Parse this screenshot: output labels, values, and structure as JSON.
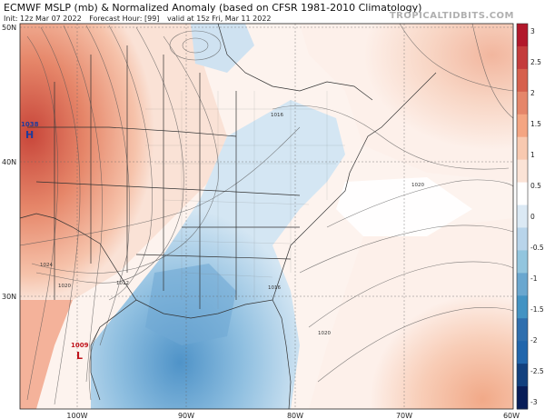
{
  "header": {
    "title": "ECMWF MSLP (mb) & Normalized Anomaly (based on CFSR 1981-2010 Climatology)",
    "init": "Init: 12z Mar 07 2022",
    "forecast_hour": "Forecast Hour: [99]",
    "valid": "valid at 15z Fri, Mar 11 2022",
    "brand": "TROPICALTIDBITS.COM"
  },
  "axes": {
    "lat_labels": [
      "50N",
      "40N",
      "30N"
    ],
    "lon_labels": [
      "100W",
      "90W",
      "80W",
      "70W",
      "60W"
    ]
  },
  "colorbar": {
    "ticks": [
      "3",
      "2.5",
      "2",
      "1.5",
      "1",
      "0.5",
      "0",
      "-0.5",
      "-1",
      "-1.5",
      "-2",
      "-2.5",
      "-3"
    ],
    "colors": [
      "#b2182b",
      "#c43c3c",
      "#d6604d",
      "#e5866a",
      "#f4a582",
      "#f8c9b0",
      "#fbe3d6",
      "#ffffff",
      "#dbe9f4",
      "#b8d4ea",
      "#92c5de",
      "#6aa7cf",
      "#4393c3",
      "#2f6fae",
      "#2166ac",
      "#12407e",
      "#081d58"
    ]
  },
  "map_labels": {
    "high_center": {
      "letter": "H",
      "value": "1038"
    },
    "low_center": {
      "letter": "L",
      "value": "1009"
    },
    "isobars": [
      "1016",
      "1020",
      "1024",
      "1020",
      "1012",
      "1016",
      "1020"
    ]
  }
}
